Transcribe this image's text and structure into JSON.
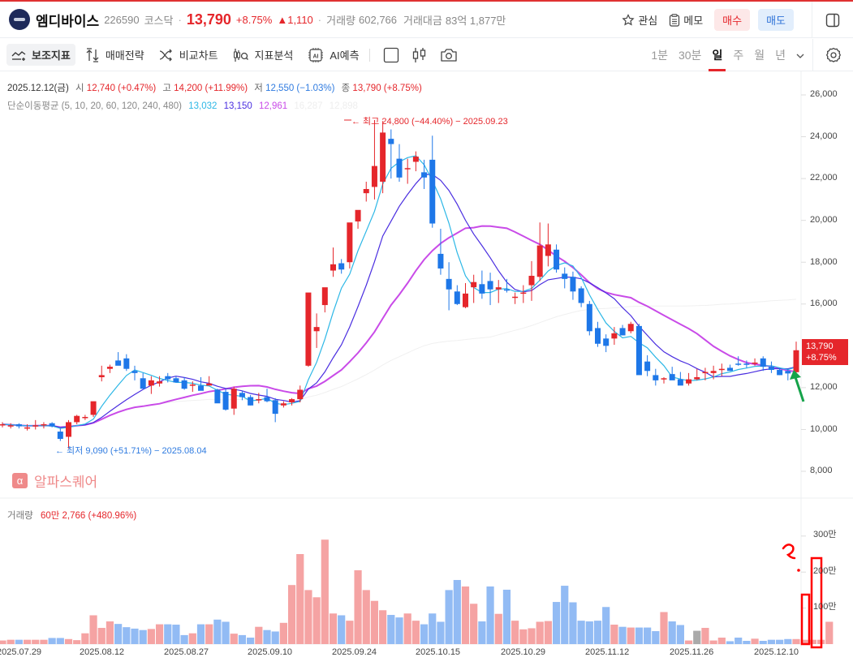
{
  "header": {
    "stock_name": "엠디바이스",
    "code": "226590",
    "market": "코스닥",
    "price": "13,790",
    "change_pct": "+8.75%",
    "change_abs": "▲1,110",
    "volume_label": "거래량",
    "volume": "602,766",
    "trade_value_label": "거래대금",
    "trade_value": "83억 1,877만",
    "watch_label": "관심",
    "memo_label": "메모",
    "buy_label": "매수",
    "sell_label": "매도"
  },
  "toolbar": {
    "indicators": "보조지표",
    "strategy": "매매전략",
    "compare": "비교차트",
    "analysis": "지표분석",
    "ai": "AI예측",
    "periods": [
      "1분",
      "30분",
      "일",
      "주",
      "월",
      "년"
    ],
    "active_period": "일"
  },
  "legend": {
    "date": "2025.12.12(금)",
    "open_label": "시",
    "open": "12,740 (+0.47%)",
    "high_label": "고",
    "high": "14,200 (+11.99%)",
    "low_label": "저",
    "low": "12,550 (−1.03%)",
    "close_label": "종",
    "close": "13,790 (+8.75%)",
    "ma_label": "단순이동평균 (5, 10, 20, 60, 120, 240, 480)",
    "ma5": "13,032",
    "ma10": "13,150",
    "ma20": "12,961",
    "ma60": "16,287",
    "ma120": "12,898"
  },
  "annotations": {
    "high": "← 최고 24,800 (−44.40%) − 2025.09.23",
    "low": "← 최저 9,090 (+51.71%) − 2025.08.04"
  },
  "watermark": {
    "icon": "α",
    "text": "알파스퀘어"
  },
  "volume_legend": {
    "label": "거래량",
    "value": "60만 2,766 (+480.96%)"
  },
  "price_tag": {
    "price": "13,790",
    "pct": "+8.75%"
  },
  "colors": {
    "up": "#e5262b",
    "down": "#1e77e8",
    "vol_up": "#f5a3a3",
    "vol_down": "#92bbf4",
    "ma5": "#2cb7e6",
    "ma10": "#4a2ee0",
    "ma20": "#c94be8",
    "accent": "#e03131"
  },
  "chart_data": {
    "type": "candlestick",
    "title": "엠디바이스 일봉",
    "y_axis": {
      "ticks": [
        "26,000",
        "24,000",
        "22,000",
        "20,000",
        "18,000",
        "16,000",
        "12,000",
        "10,000",
        "8,000"
      ],
      "range": [
        7500,
        26800
      ]
    },
    "volume_axis": {
      "ticks": [
        "300만",
        "200만",
        "100만"
      ]
    },
    "x_ticks": [
      "2025.07.29",
      "2025.08.12",
      "2025.08.27",
      "2025.09.10",
      "2025.09.24",
      "2025.10.15",
      "2025.10.29",
      "2025.11.12",
      "2025.11.26",
      "2025.12.10"
    ],
    "candles": [
      [
        10250,
        10350,
        10100,
        10250
      ],
      [
        10150,
        10300,
        10050,
        10200
      ],
      [
        10250,
        10300,
        10050,
        10150
      ],
      [
        10050,
        10250,
        9950,
        10100
      ],
      [
        10150,
        10450,
        10000,
        10200
      ],
      [
        10250,
        10350,
        10050,
        10250
      ],
      [
        10300,
        10350,
        10100,
        10150
      ],
      [
        9900,
        10050,
        9450,
        9550
      ],
      [
        9650,
        10450,
        9090,
        10350
      ],
      [
        10350,
        10700,
        10250,
        10650
      ],
      [
        10600,
        10700,
        10450,
        10600
      ],
      [
        10700,
        11300,
        10600,
        11350
      ],
      [
        12500,
        13050,
        12300,
        12600
      ],
      [
        12900,
        13100,
        12700,
        13000
      ],
      [
        13300,
        13700,
        13100,
        13050
      ],
      [
        13400,
        13600,
        12800,
        12900
      ],
      [
        12800,
        13050,
        12350,
        12700
      ],
      [
        12450,
        12700,
        11950,
        11950
      ],
      [
        12100,
        12550,
        11700,
        12350
      ],
      [
        12200,
        12550,
        12050,
        12300
      ],
      [
        12550,
        12700,
        12250,
        12400
      ],
      [
        12450,
        12550,
        12250,
        12250
      ],
      [
        12350,
        12500,
        11900,
        11950
      ],
      [
        12150,
        12300,
        11800,
        12150
      ],
      [
        12100,
        12500,
        11900,
        11850
      ],
      [
        12100,
        12550,
        12150,
        12200
      ],
      [
        11900,
        11950,
        11350,
        11250
      ],
      [
        11800,
        11950,
        10900,
        10950
      ],
      [
        11000,
        12050,
        10700,
        11950
      ],
      [
        11750,
        11850,
        11400,
        11550
      ],
      [
        11550,
        11650,
        11150,
        11150
      ],
      [
        11450,
        11750,
        11250,
        11450
      ],
      [
        11550,
        11950,
        11300,
        11350
      ],
      [
        11400,
        11500,
        10350,
        10750
      ],
      [
        11150,
        11350,
        11050,
        11250
      ],
      [
        11300,
        11500,
        11150,
        11450
      ],
      [
        11450,
        12100,
        11300,
        11900
      ],
      [
        13050,
        14050,
        13000,
        16550
      ],
      [
        14700,
        15550,
        13900,
        14900
      ],
      [
        15950,
        16400,
        15600,
        16800
      ],
      [
        17600,
        18700,
        17300,
        17900
      ],
      [
        17950,
        18150,
        17450,
        17650
      ],
      [
        18000,
        19800,
        17700,
        19900
      ],
      [
        19950,
        20350,
        19600,
        20500
      ],
      [
        21300,
        21850,
        20900,
        21500
      ],
      [
        21600,
        24800,
        21000,
        22600
      ],
      [
        21850,
        24750,
        21300,
        24200
      ],
      [
        23900,
        24350,
        22000,
        23650
      ],
      [
        22950,
        23650,
        21850,
        22050
      ],
      [
        22450,
        22950,
        21750,
        22500
      ],
      [
        22800,
        23300,
        22350,
        23050
      ],
      [
        22300,
        22900,
        21500,
        22050
      ],
      [
        22900,
        24050,
        19650,
        19850
      ],
      [
        18400,
        19600,
        17400,
        17700
      ],
      [
        17200,
        18000,
        15700,
        16700
      ],
      [
        16600,
        16900,
        15950,
        16000
      ],
      [
        15850,
        17000,
        15800,
        16500
      ],
      [
        16800,
        17400,
        16050,
        17050
      ],
      [
        16950,
        17600,
        16250,
        16500
      ],
      [
        17100,
        17500,
        15950,
        16700
      ],
      [
        16700,
        17150,
        16050,
        16800
      ],
      [
        16700,
        17200,
        16550,
        16650
      ],
      [
        16300,
        16550,
        16000,
        16350
      ],
      [
        16500,
        16900,
        16050,
        16550
      ],
      [
        16900,
        18050,
        16150,
        17350
      ],
      [
        17300,
        19900,
        17100,
        18800
      ],
      [
        18300,
        19850,
        17800,
        18850
      ],
      [
        18600,
        18850,
        17500,
        17650
      ],
      [
        17450,
        17750,
        16750,
        17200
      ],
      [
        17300,
        17550,
        16200,
        16600
      ],
      [
        16750,
        16850,
        15850,
        16050
      ],
      [
        16000,
        16150,
        14500,
        14700
      ],
      [
        14850,
        15150,
        13950,
        14100
      ],
      [
        14350,
        14550,
        13700,
        14000
      ],
      [
        14350,
        14900,
        14050,
        14600
      ],
      [
        14850,
        15000,
        14600,
        14500
      ],
      [
        14700,
        15150,
        14600,
        15050
      ],
      [
        14950,
        15050,
        12750,
        12600
      ],
      [
        13250,
        13550,
        12550,
        12800
      ],
      [
        12600,
        12900,
        12100,
        12350
      ],
      [
        12400,
        12500,
        12200,
        12450
      ],
      [
        12650,
        13000,
        12450,
        12350
      ],
      [
        12400,
        12750,
        12150,
        12100
      ],
      [
        12200,
        12700,
        12100,
        12400
      ],
      [
        12400,
        12900,
        12350,
        12500
      ],
      [
        12700,
        12950,
        12350,
        12750
      ],
      [
        12700,
        13050,
        12400,
        12800
      ],
      [
        12850,
        13150,
        12550,
        12900
      ],
      [
        12950,
        13100,
        12800,
        12800
      ],
      [
        13150,
        13500,
        13050,
        13100
      ],
      [
        13150,
        13300,
        12950,
        13100
      ],
      [
        13150,
        13400,
        13050,
        13200
      ],
      [
        13400,
        13500,
        12800,
        13000
      ],
      [
        13000,
        13250,
        12700,
        12850
      ],
      [
        12850,
        12950,
        12600,
        12600
      ],
      [
        12800,
        12900,
        12350,
        12680
      ],
      [
        12740,
        14200,
        12550,
        13790
      ]
    ],
    "volume_series_units": "만주 (approx, relative)",
    "volume": [
      10,
      12,
      12,
      12,
      12,
      12,
      17,
      17,
      14,
      11,
      30,
      80,
      45,
      63,
      56,
      47,
      43,
      39,
      42,
      55,
      55,
      54,
      25,
      30,
      55,
      55,
      68,
      62,
      29,
      25,
      18,
      48,
      39,
      35,
      59,
      164,
      250,
      150,
      130,
      290,
      85,
      80,
      65,
      205,
      150,
      120,
      94,
      81,
      74,
      85,
      65,
      55,
      85,
      62,
      150,
      178,
      160,
      112,
      63,
      160,
      84,
      151,
      65,
      41,
      44,
      62,
      64,
      117,
      162,
      116,
      65,
      63,
      65,
      103,
      54,
      48,
      46,
      46,
      46,
      36,
      89,
      63,
      53,
      10,
      37,
      45,
      10,
      18,
      8,
      18,
      9,
      15,
      9,
      12,
      12,
      14,
      14,
      12,
      12,
      12,
      62
    ]
  }
}
